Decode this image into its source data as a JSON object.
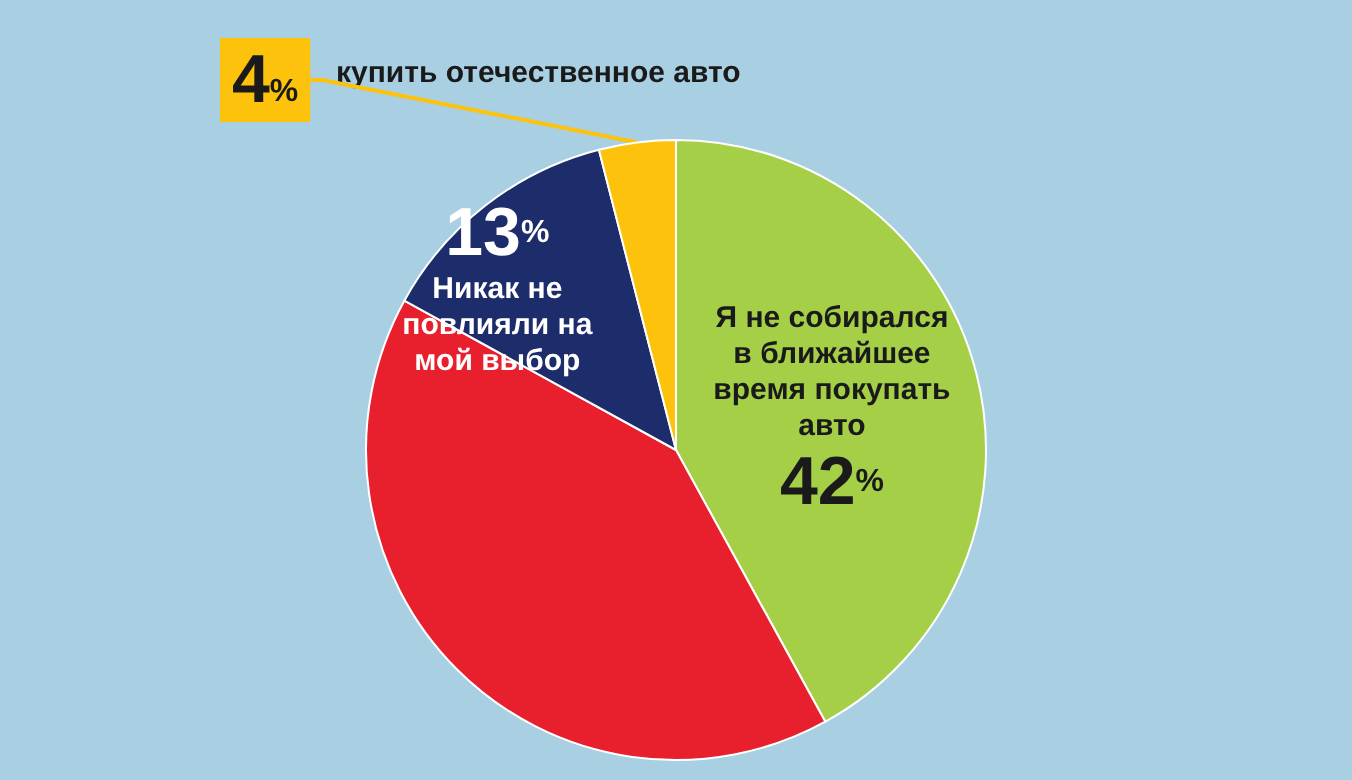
{
  "chart_data": {
    "type": "pie",
    "categories": [
      "Я не собирался в ближайшее время покупать авто",
      null,
      "Никак не повлияли на мой выбор",
      "купить отечественное авто"
    ],
    "values": [
      42,
      41,
      13,
      4
    ],
    "colors": [
      "#a6cf48",
      "#e8202e",
      "#1d2c6b",
      "#fdc30c"
    ],
    "value_labels": [
      "42%",
      null,
      "13%",
      "4%"
    ],
    "legend": false
  }
}
